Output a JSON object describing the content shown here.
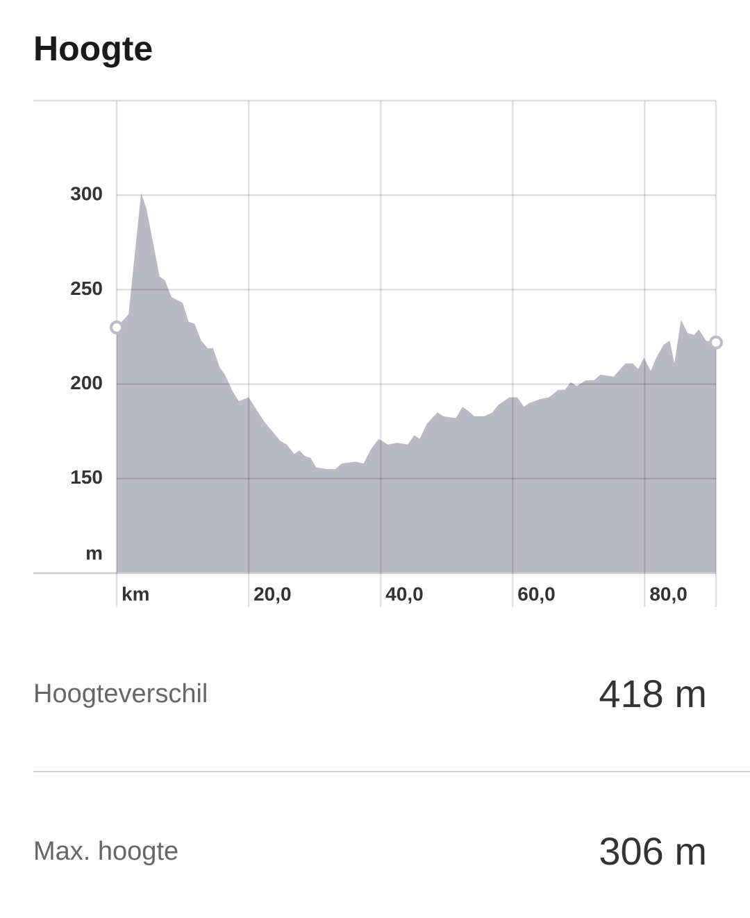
{
  "chart_data": {
    "type": "area",
    "title": "Hoogte",
    "color": "#bab9c6",
    "grid": true,
    "x_label": "km",
    "y_label": "m",
    "xlim": [
      0,
      90.8
    ],
    "ylim": [
      100,
      350
    ],
    "xticks": [
      {
        "value": 20,
        "label": "20,0"
      },
      {
        "value": 40,
        "label": "40,0"
      },
      {
        "value": 60,
        "label": "60,0"
      },
      {
        "value": 80,
        "label": "80,0"
      }
    ],
    "yticks": [
      150,
      200,
      250,
      300
    ],
    "x": [
      0,
      1.8,
      3.7,
      4.5,
      5.4,
      6.5,
      7.3,
      8.3,
      10.0,
      10.9,
      11.8,
      12.8,
      13.8,
      14.6,
      15.6,
      16.4,
      17.6,
      18.5,
      20.0,
      21.1,
      22.4,
      24.8,
      25.8,
      26.9,
      27.7,
      28.5,
      29.4,
      30.2,
      32.0,
      33.1,
      34.1,
      36.2,
      37.4,
      38.6,
      39.7,
      41.1,
      42.5,
      44.1,
      45.1,
      45.9,
      47.0,
      48.6,
      49.5,
      51.4,
      52.4,
      53.2,
      54.2,
      55.7,
      56.9,
      57.8,
      59.5,
      60.7,
      61.7,
      62.5,
      64.1,
      65.5,
      66.9,
      67.9,
      68.8,
      69.7,
      71.1,
      72.3,
      73.3,
      75.3,
      77.1,
      78.2,
      79.0,
      79.9,
      80.9,
      81.9,
      82.9,
      83.8,
      84.5,
      85.5,
      86.5,
      87.5,
      88.2,
      89.3,
      90.8
    ],
    "values": [
      230,
      237,
      301,
      293,
      277,
      257,
      255,
      246,
      243,
      233,
      232,
      223,
      219,
      219,
      209,
      205,
      196,
      191,
      193,
      187,
      180,
      170,
      168,
      163,
      165,
      162,
      161,
      156,
      155,
      155,
      158,
      159,
      158,
      166,
      171,
      168,
      169,
      168,
      173,
      171,
      179,
      185,
      183,
      182,
      188,
      186,
      183,
      183,
      185,
      189,
      193,
      193,
      188,
      190,
      192,
      193,
      197,
      197,
      201,
      199,
      202,
      202,
      205,
      204,
      211,
      211,
      208,
      214,
      207,
      215,
      221,
      223,
      211,
      234,
      227,
      226,
      229,
      223,
      222
    ]
  },
  "stats": [
    {
      "label": "Hoogteverschil",
      "value": "418 m"
    },
    {
      "label": "Max. hoogte",
      "value": "306 m"
    }
  ]
}
